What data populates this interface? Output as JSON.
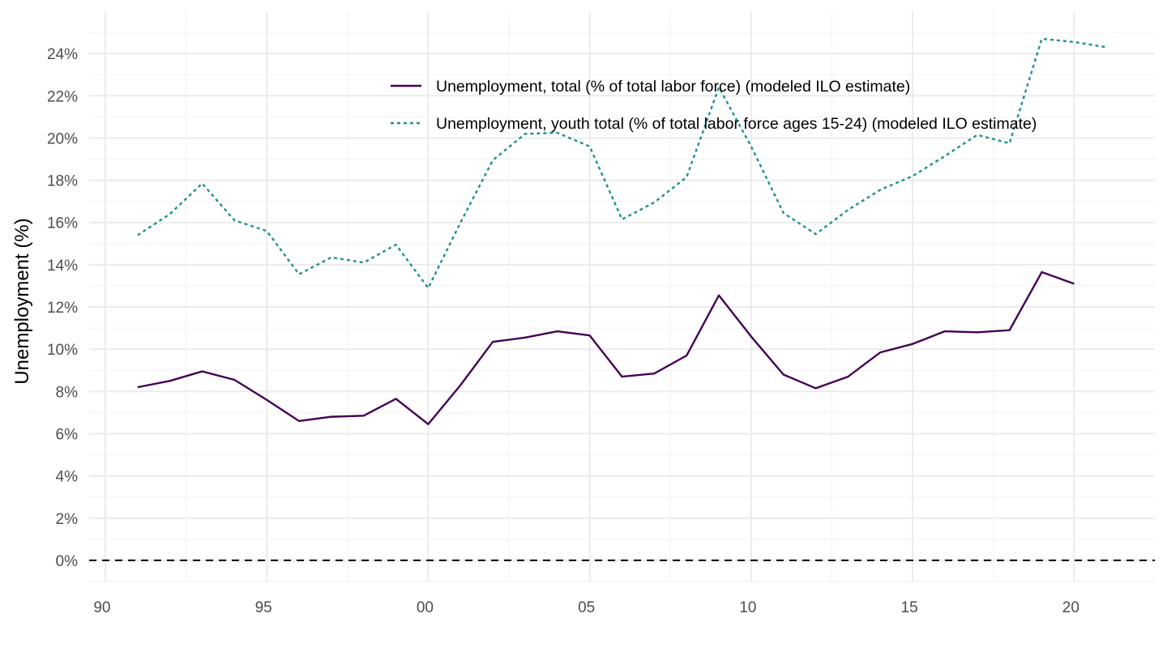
{
  "chart_data": {
    "type": "line",
    "xlabel": "",
    "ylabel": "Unemployment (%)",
    "xlim": [
      1989.5,
      2022.5
    ],
    "ylim": [
      -1,
      26
    ],
    "x_ticks": [
      1990,
      1995,
      2000,
      2005,
      2010,
      2015,
      2020
    ],
    "x_tick_labels": [
      "90",
      "95",
      "00",
      "05",
      "10",
      "15",
      "20"
    ],
    "y_ticks": [
      0,
      2,
      4,
      6,
      8,
      10,
      12,
      14,
      16,
      18,
      20,
      22,
      24
    ],
    "y_tick_labels": [
      "0%",
      "2%",
      "4%",
      "6%",
      "8%",
      "10%",
      "12%",
      "14%",
      "16%",
      "18%",
      "20%",
      "22%",
      "24%"
    ],
    "grid": true,
    "legend_position": "top-right",
    "reference_line": {
      "y": 0,
      "style": "dashed",
      "color": "#000000"
    },
    "series": [
      {
        "name": "Unemployment, total (% of total labor force) (modeled ILO estimate)",
        "color": "#440154",
        "dash": "solid",
        "x": [
          1991,
          1992,
          1993,
          1994,
          1995,
          1996,
          1997,
          1998,
          1999,
          2000,
          2001,
          2002,
          2003,
          2004,
          2005,
          2006,
          2007,
          2008,
          2009,
          2010,
          2011,
          2012,
          2013,
          2014,
          2015,
          2016,
          2017,
          2018,
          2019,
          2020
        ],
        "values": [
          8.2,
          8.5,
          8.95,
          8.55,
          7.6,
          6.6,
          6.8,
          6.85,
          7.65,
          6.45,
          8.3,
          10.35,
          10.55,
          10.85,
          10.65,
          8.7,
          8.85,
          9.7,
          12.55,
          10.6,
          8.8,
          8.15,
          8.7,
          9.85,
          10.25,
          10.85,
          10.8,
          10.9,
          13.65,
          13.1
        ]
      },
      {
        "name": "Unemployment, youth total (% of total labor force ages 15-24) (modeled ILO estimate)",
        "color": "#21908C",
        "dash": "dotted",
        "x": [
          1991,
          1992,
          1993,
          1994,
          1995,
          1996,
          1997,
          1998,
          1999,
          2000,
          2001,
          2002,
          2003,
          2004,
          2005,
          2006,
          2007,
          2008,
          2009,
          2010,
          2011,
          2012,
          2013,
          2014,
          2015,
          2016,
          2017,
          2018,
          2019,
          2020,
          2021
        ],
        "values": [
          15.4,
          16.4,
          17.85,
          16.1,
          15.6,
          13.55,
          14.35,
          14.1,
          14.95,
          12.9,
          16.0,
          18.95,
          20.2,
          20.25,
          19.6,
          16.15,
          16.95,
          18.15,
          22.4,
          19.6,
          16.45,
          15.45,
          16.6,
          17.55,
          18.2,
          19.15,
          20.15,
          19.75,
          24.7,
          24.55,
          24.3
        ]
      }
    ]
  }
}
